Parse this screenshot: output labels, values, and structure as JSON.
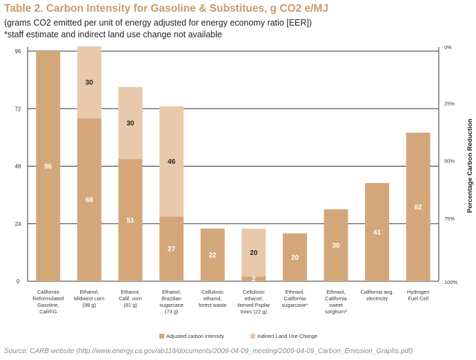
{
  "header": {
    "title": "Table 2. Carbon Intensity for Gasoline & Substitues, g CO2 e/MJ",
    "subtitle_line1": "(grams CO2 emitted per unit of energy adjusted for energy economy ratio [EER])",
    "subtitle_line2": "*staff estimate and indirect land use change not available"
  },
  "footer": {
    "source": "Source: CARB website (http://www.energy.ca.gov/ab118/documents/2009-04-09_meeting/2009-04-09_Carbon_Emission_Graphs.pdf)"
  },
  "chart_data": {
    "type": "bar",
    "stacked": true,
    "title": "Table 2. Carbon Intensity for Gasoline & Substitues, g CO2 e/MJ",
    "categories": [
      [
        "California",
        "Reformulated",
        "Gasoline,",
        "CaRFG"
      ],
      [
        "Ethanol,",
        "Midwest corn",
        "(98 g)"
      ],
      [
        "Ethanol,",
        "Calif. corn",
        "(81 g)"
      ],
      [
        "Ethanol,",
        "Brazilian",
        "sugarcane",
        "(73 g)"
      ],
      [
        "Cellulosic",
        "ethanol,",
        "forest waste"
      ],
      [
        "Cellulosic",
        "ethanol,",
        "farmed Poplar",
        "trees (22 g)"
      ],
      [
        "Ethnaol,",
        "California",
        "sugarcane*"
      ],
      [
        "Ethnaol,",
        "California",
        "sweet",
        "sorghum*"
      ],
      [
        "California avg.",
        "electricity"
      ],
      [
        "Hydrogen",
        "Fuel Cell"
      ]
    ],
    "series": [
      {
        "name": "Adjusted carbon intensity",
        "color": "#d4a77a",
        "label_color": "#ffffff",
        "values": [
          96,
          68,
          51,
          27,
          22,
          2,
          20,
          30,
          41,
          62
        ]
      },
      {
        "name": "Indirect Land Use Change",
        "color": "#e8c9ab",
        "label_color": "#222222",
        "values": [
          0,
          30,
          30,
          46,
          0,
          20,
          0,
          0,
          0,
          0
        ]
      }
    ],
    "ylim": [
      0,
      96
    ],
    "yticks": [
      "0",
      "24",
      "48",
      "72",
      "96"
    ],
    "right_axis": {
      "label": "Percentage Carbon Reduction",
      "ticks": [
        "0%",
        "25%",
        "50%",
        "75%",
        "100%"
      ]
    },
    "legend_position": "bottom"
  }
}
